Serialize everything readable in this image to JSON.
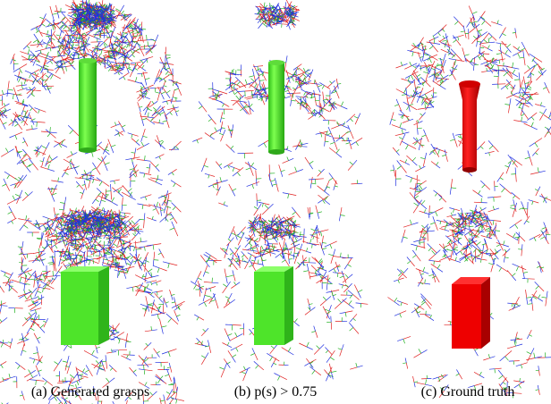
{
  "figure": {
    "captions": [
      "(a) Generated grasps",
      "(b) p(s) > 0.75",
      "(c) Ground truth"
    ]
  }
}
